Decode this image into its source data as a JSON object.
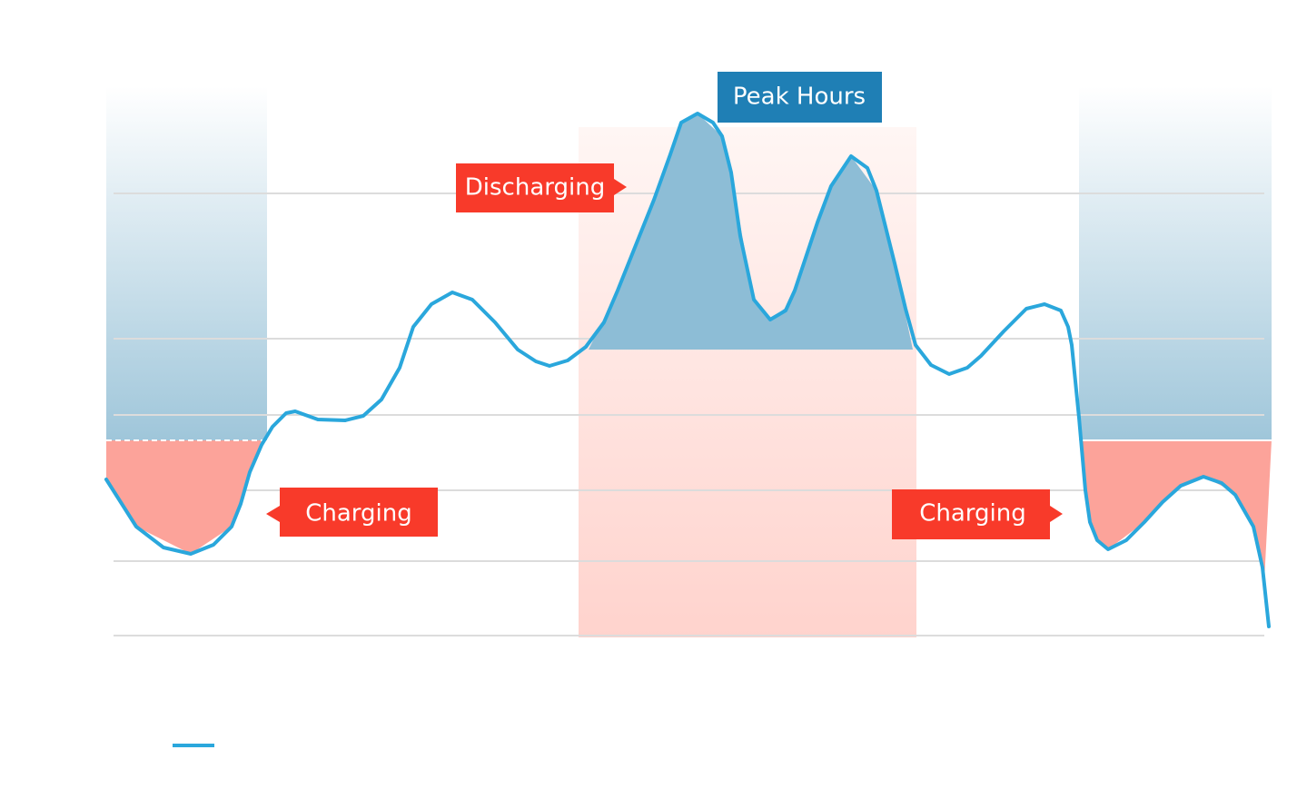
{
  "annotations": [
    "Peak Hours",
    "Discharging",
    "Charging",
    "Charging"
  ]
}
